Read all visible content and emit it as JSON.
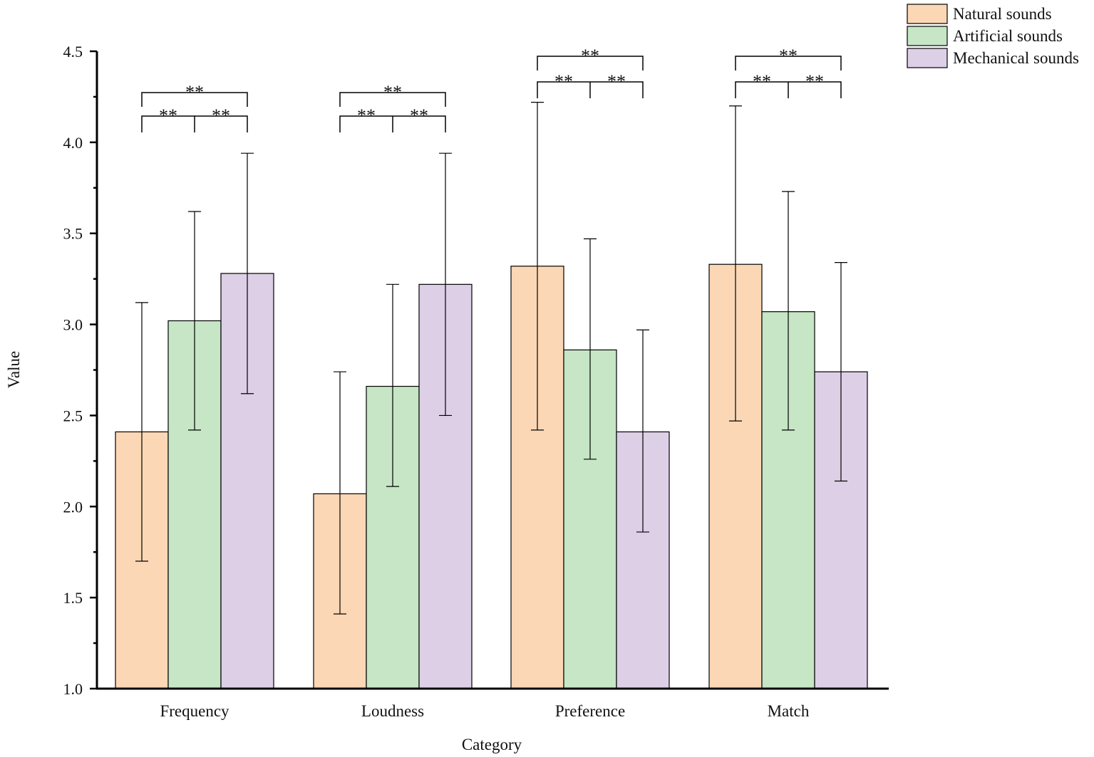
{
  "chart_data": {
    "type": "bar",
    "title": "",
    "xlabel": "Category",
    "ylabel": "Value",
    "ylim": [
      1.0,
      4.5
    ],
    "yticks": [
      1.0,
      1.5,
      2.0,
      2.5,
      3.0,
      3.5,
      4.0,
      4.5
    ],
    "ytick_labels": [
      "1.0",
      "1.5",
      "2.0",
      "2.5",
      "3.0",
      "3.5",
      "4.0",
      "4.5"
    ],
    "grid": false,
    "legend_position": "top-right",
    "categories": [
      "Frequency",
      "Loudness",
      "Preference",
      "Match"
    ],
    "series": [
      {
        "name": "Natural sounds",
        "color": "#FCD7B5",
        "values": [
          2.41,
          2.07,
          3.32,
          3.33
        ],
        "error_low": [
          1.7,
          1.41,
          2.42,
          2.47
        ],
        "error_high": [
          3.12,
          2.74,
          4.22,
          4.2
        ]
      },
      {
        "name": "Artificial sounds",
        "color": "#C6E6C6",
        "values": [
          3.02,
          2.66,
          2.86,
          3.07
        ],
        "error_low": [
          2.42,
          2.11,
          2.26,
          2.42
        ],
        "error_high": [
          3.62,
          3.22,
          3.47,
          3.73
        ]
      },
      {
        "name": "Mechanical sounds",
        "color": "#DCCFE6",
        "values": [
          3.28,
          3.22,
          2.41,
          2.74
        ],
        "error_low": [
          2.62,
          2.5,
          1.86,
          2.14
        ],
        "error_high": [
          3.94,
          3.94,
          2.97,
          3.34
        ]
      }
    ],
    "significance": [
      {
        "category": "Frequency",
        "pairs": [
          {
            "from": 0,
            "to": 1,
            "label": "**"
          },
          {
            "from": 1,
            "to": 2,
            "label": "**"
          },
          {
            "from": 0,
            "to": 2,
            "label": "**"
          }
        ]
      },
      {
        "category": "Loudness",
        "pairs": [
          {
            "from": 0,
            "to": 1,
            "label": "**"
          },
          {
            "from": 1,
            "to": 2,
            "label": "**"
          },
          {
            "from": 0,
            "to": 2,
            "label": "**"
          }
        ]
      },
      {
        "category": "Preference",
        "pairs": [
          {
            "from": 0,
            "to": 1,
            "label": "**"
          },
          {
            "from": 1,
            "to": 2,
            "label": "**"
          },
          {
            "from": 0,
            "to": 2,
            "label": "**"
          }
        ]
      },
      {
        "category": "Match",
        "pairs": [
          {
            "from": 0,
            "to": 1,
            "label": "**"
          },
          {
            "from": 1,
            "to": 2,
            "label": "**"
          },
          {
            "from": 0,
            "to": 2,
            "label": "**"
          }
        ]
      }
    ]
  }
}
